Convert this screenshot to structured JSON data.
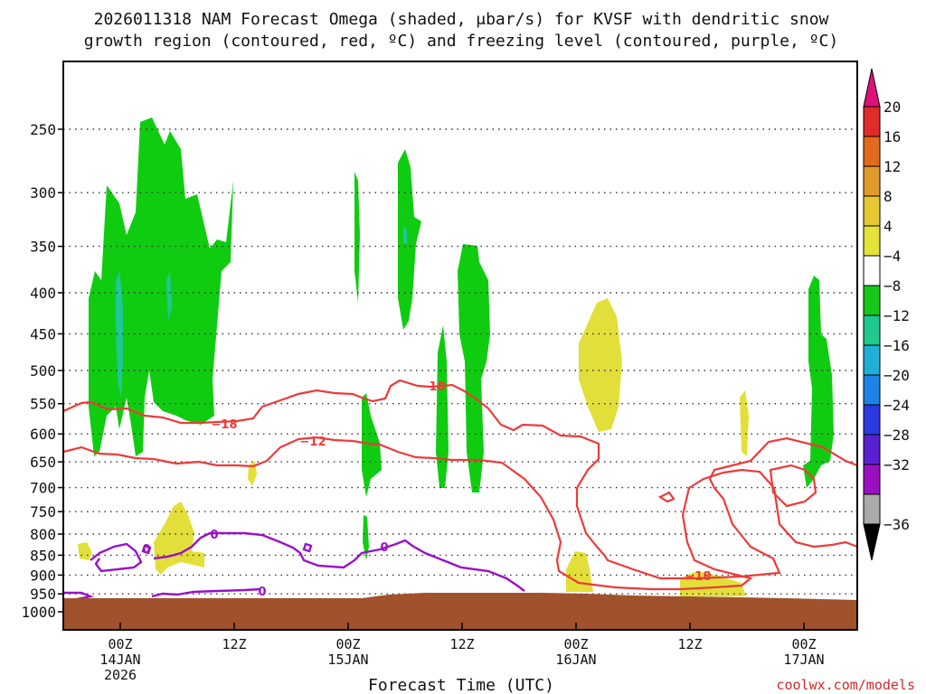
{
  "chart_data": {
    "type": "time-height contour",
    "title_line1": "2026011318 NAM Forecast Omega (shaded, μbar/s) for KVSF with dendritic snow",
    "title_line2": "growth region (contoured, red, ºC) and freezing level (contoured, purple, ºC)",
    "xlabel": "Forecast Time (UTC)",
    "credit": "coolwx.com/models",
    "x_unit": "hours from 2026-01-13 18Z",
    "xlim": [
      0,
      84
    ],
    "y_ticks": [
      250,
      300,
      350,
      400,
      450,
      500,
      550,
      600,
      650,
      700,
      750,
      800,
      850,
      900,
      950,
      1000
    ],
    "x_ticks": [
      {
        "hour": 6,
        "line1": "00Z",
        "line2": "14JAN",
        "line3": "2026"
      },
      {
        "hour": 18,
        "line1": "12Z",
        "line2": "",
        "line3": ""
      },
      {
        "hour": 30,
        "line1": "00Z",
        "line2": "15JAN",
        "line3": ""
      },
      {
        "hour": 42,
        "line1": "12Z",
        "line2": "",
        "line3": ""
      },
      {
        "hour": 54,
        "line1": "00Z",
        "line2": "16JAN",
        "line3": ""
      },
      {
        "hour": 66,
        "line1": "12Z",
        "line2": "",
        "line3": ""
      },
      {
        "hour": 78,
        "line1": "00Z",
        "line2": "17JAN",
        "line3": ""
      }
    ],
    "colorbar": {
      "levels": [
        "20",
        "16",
        "12",
        "8",
        "4",
        "−4",
        "−8",
        "−12",
        "−16",
        "−20",
        "−24",
        "−28",
        "−32",
        "−36"
      ],
      "colors": [
        "#e02b2b",
        "#e26a1c",
        "#e09a2a",
        "#e3c832",
        "#e3e33a",
        "#ffffff",
        "#18c818",
        "#1fc88c",
        "#1fb0d8",
        "#1d83e6",
        "#2a3ae0",
        "#5a1fd0",
        "#9a10c0",
        "#aaaaaa"
      ],
      "top_color": "#e0107a",
      "bottom_color": "#000000"
    },
    "contour_labels": {
      "dgz": [
        "−18",
        "−12",
        "−18",
        "−18"
      ],
      "freezing": [
        "0",
        "0",
        "0",
        "0"
      ]
    },
    "series_colors": {
      "dgz": "#ee3a3a",
      "freezing": "#9a10c8",
      "ground": "#a0522d",
      "omega_weak_up": "#10cc10",
      "omega_mod_up": "#1fc896",
      "omega_down": "#e3df3a"
    },
    "omega_regions": [
      {
        "class": "up-4to-8",
        "hour_range": [
          2,
          18
        ],
        "p_range": [
          240,
          650
        ]
      },
      {
        "class": "up-8to-12",
        "hour_range": [
          6,
          6.5
        ],
        "p_range": [
          380,
          520
        ]
      },
      {
        "class": "up-4to-8",
        "hour_range": [
          30,
          32
        ],
        "p_range": [
          270,
          710
        ]
      },
      {
        "class": "up-4to-8",
        "hour_range": [
          36,
          40
        ],
        "p_range": [
          270,
          700
        ]
      },
      {
        "class": "up-4to-8",
        "hour_range": [
          42,
          46
        ],
        "p_range": [
          360,
          700
        ]
      },
      {
        "class": "up-4to-8",
        "hour_range": [
          81,
          84
        ],
        "p_range": [
          380,
          690
        ]
      },
      {
        "class": "down-4to8",
        "hour_range": [
          54,
          58
        ],
        "p_range": [
          400,
          600
        ]
      },
      {
        "class": "down-4to8",
        "hour_range": [
          10,
          14
        ],
        "p_range": [
          730,
          880
        ]
      },
      {
        "class": "down-4to8",
        "hour_range": [
          66,
          73
        ],
        "p_range": [
          880,
          950
        ]
      }
    ]
  }
}
